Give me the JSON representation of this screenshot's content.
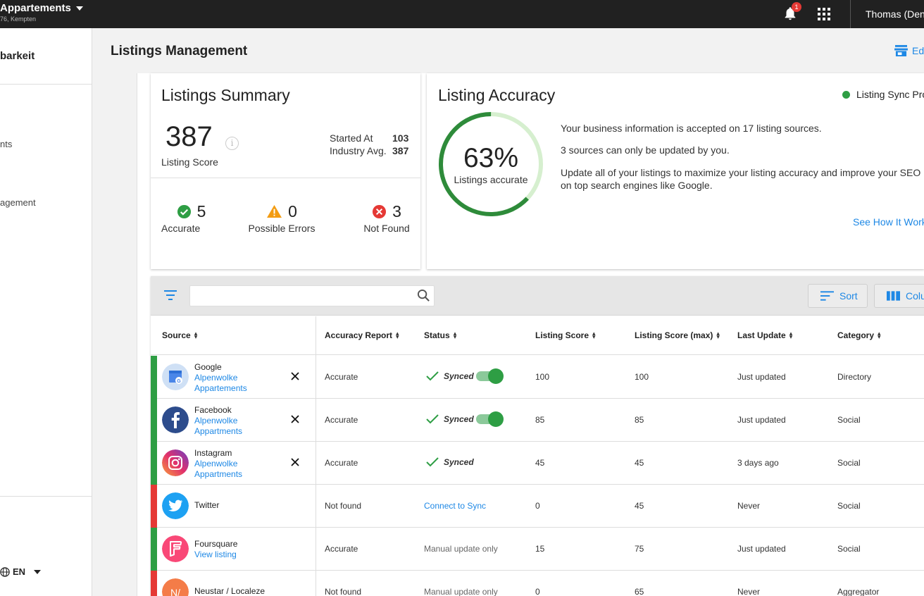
{
  "topbar": {
    "app_name": "Appartements",
    "app_sub": "76, Kempten",
    "notif_count": "1",
    "user": "Thomas (Den"
  },
  "sidebar": {
    "title": "barkeit",
    "items": [
      "nts",
      "agement"
    ],
    "lang": "EN"
  },
  "header": {
    "title": "Listings Management",
    "edit_label": "Ed"
  },
  "summary": {
    "title": "Listings Summary",
    "score": "387",
    "score_label": "Listing Score",
    "started_label": "Started At",
    "started_value": "103",
    "industry_label": "Industry Avg.",
    "industry_value": "387",
    "stats": [
      {
        "value": "5",
        "label": "Accurate"
      },
      {
        "value": "0",
        "label": "Possible Errors"
      },
      {
        "value": "3",
        "label": "Not Found"
      }
    ]
  },
  "accuracy": {
    "title": "Listing Accuracy",
    "legend": "Listing Sync Pro",
    "percent_value": 63,
    "percent": "63%",
    "percent_label": "Listings accurate",
    "line1": "Your business information is accepted on 17 listing sources.",
    "line2": "3 sources can only be updated by you.",
    "line3a": "Update all of your listings to maximize your listing accuracy and improve your SEO r",
    "line3b": "on top search engines like Google.",
    "link": "See How It Work"
  },
  "toolbar": {
    "search_placeholder": "",
    "sort_label": "Sort",
    "columns_label": "Colu"
  },
  "table": {
    "headers": {
      "source": "Source",
      "accuracy": "Accuracy Report",
      "status": "Status",
      "score": "Listing Score",
      "score_max": "Listing Score (max)",
      "last_update": "Last Update",
      "category": "Category"
    },
    "rows": [
      {
        "name": "Google",
        "sub1": "Alpenwolke",
        "sub2": "Appartements",
        "accuracy": "Accurate",
        "status": "Synced",
        "score": "100",
        "score_max": "100",
        "last_update": "Just updated",
        "category": "Directory",
        "bar": "#2e9e44"
      },
      {
        "name": "Facebook",
        "sub1": "Alpenwolke",
        "sub2": "Appartments",
        "accuracy": "Accurate",
        "status": "Synced",
        "score": "85",
        "score_max": "85",
        "last_update": "Just updated",
        "category": "Social",
        "bar": "#2e9e44"
      },
      {
        "name": "Instagram",
        "sub1": "Alpenwolke",
        "sub2": "Appartments",
        "accuracy": "Accurate",
        "status": "Synced",
        "score": "45",
        "score_max": "45",
        "last_update": "3 days ago",
        "category": "Social",
        "bar": "#2e9e44"
      },
      {
        "name": "Twitter",
        "accuracy": "Not found",
        "status": "Connect to Sync",
        "score": "0",
        "score_max": "45",
        "last_update": "Never",
        "category": "Social",
        "bar": "#e53935"
      },
      {
        "name": "Foursquare",
        "sub1": "View listing",
        "accuracy": "Accurate",
        "status": "Manual update only",
        "score": "15",
        "score_max": "75",
        "last_update": "Just updated",
        "category": "Social",
        "bar": "#2e9e44"
      },
      {
        "name": "Neustar / Localeze",
        "logo_text": "N/",
        "accuracy": "Not found",
        "status": "Manual update only",
        "score": "0",
        "score_max": "65",
        "last_update": "Never",
        "category": "Aggregator",
        "bar": "#e53935"
      }
    ]
  }
}
